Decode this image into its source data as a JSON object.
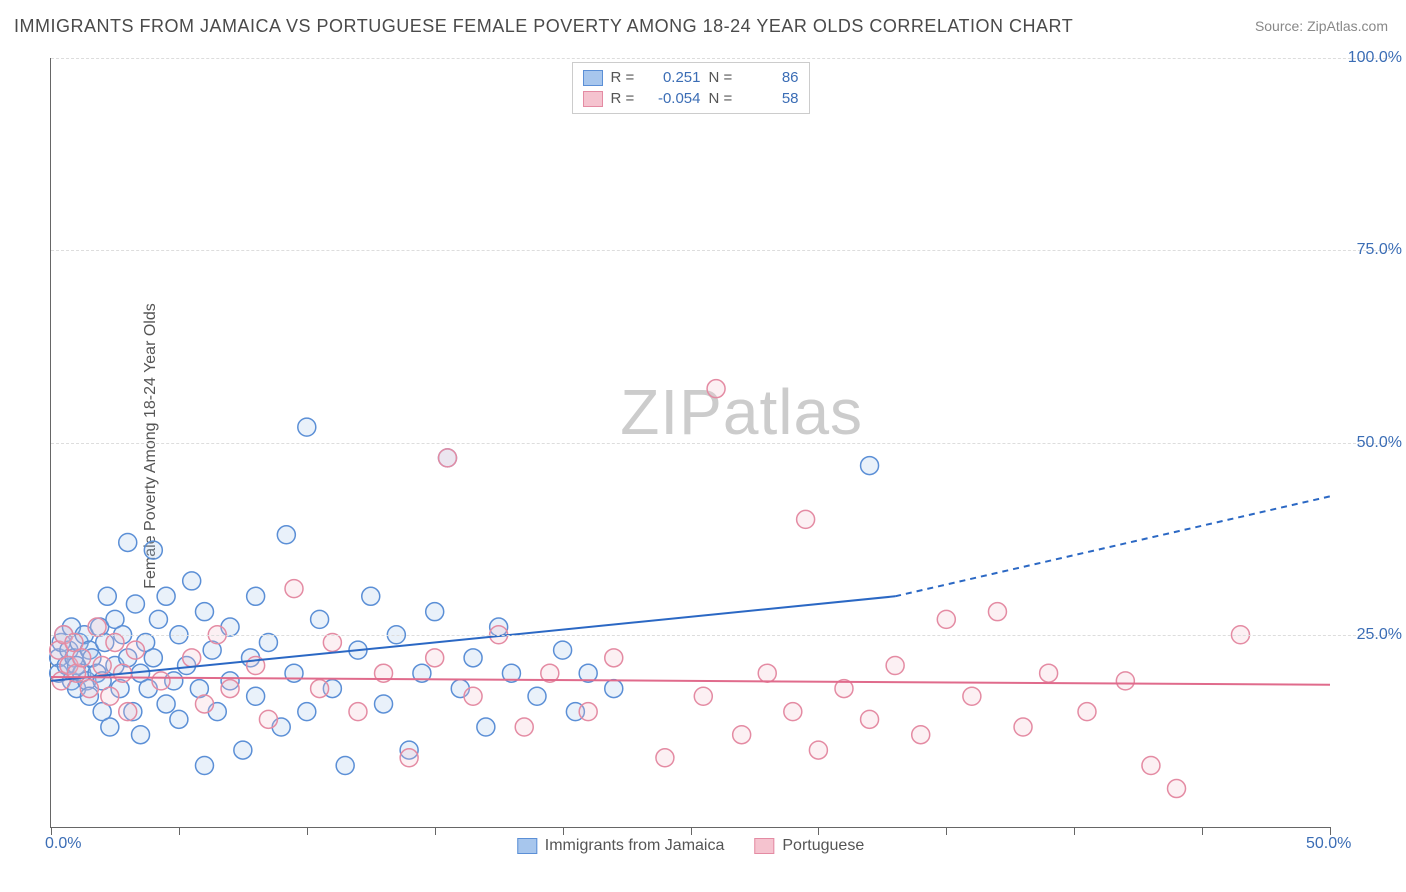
{
  "title": "IMMIGRANTS FROM JAMAICA VS PORTUGUESE FEMALE POVERTY AMONG 18-24 YEAR OLDS CORRELATION CHART",
  "source": "Source: ZipAtlas.com",
  "watermark_a": "ZIP",
  "watermark_b": "atlas",
  "chart": {
    "type": "scatter-with-trend",
    "ylabel": "Female Poverty Among 18-24 Year Olds",
    "xlim": [
      0,
      50
    ],
    "ylim": [
      0,
      100
    ],
    "xticks": [
      0,
      5,
      10,
      15,
      20,
      25,
      30,
      35,
      40,
      45,
      50
    ],
    "xtick_labels": {
      "0": "0.0%",
      "50": "50.0%"
    },
    "yticks": [
      25,
      50,
      75,
      100
    ],
    "ytick_labels": {
      "25": "25.0%",
      "50": "50.0%",
      "75": "75.0%",
      "100": "100.0%"
    },
    "grid_color": "#dddddd",
    "background_color": "#ffffff",
    "axis_color": "#666666",
    "marker_radius": 9,
    "marker_stroke_width": 1.5,
    "marker_fill_opacity": 0.25,
    "trend_line_width": 2
  },
  "series": [
    {
      "name": "Immigrants from Jamaica",
      "color_fill": "#a7c6ed",
      "color_stroke": "#5b8fd6",
      "trend_color": "#2b68c4",
      "R": "0.251",
      "N": "86",
      "trend": {
        "x1": 0,
        "y1": 19,
        "x2": 33,
        "y2": 30,
        "dash_x2": 50,
        "dash_y2": 43
      },
      "points": [
        [
          0.3,
          22
        ],
        [
          0.3,
          20
        ],
        [
          0.4,
          24
        ],
        [
          0.5,
          25
        ],
        [
          0.6,
          21
        ],
        [
          0.7,
          23
        ],
        [
          0.8,
          19
        ],
        [
          0.8,
          26
        ],
        [
          0.9,
          22
        ],
        [
          1.0,
          21
        ],
        [
          1.0,
          18
        ],
        [
          1.1,
          24
        ],
        [
          1.2,
          20
        ],
        [
          1.3,
          25
        ],
        [
          1.4,
          19
        ],
        [
          1.5,
          23
        ],
        [
          1.5,
          17
        ],
        [
          1.6,
          22
        ],
        [
          1.8,
          20
        ],
        [
          1.9,
          26
        ],
        [
          2.0,
          15
        ],
        [
          2.0,
          19
        ],
        [
          2.1,
          24
        ],
        [
          2.2,
          30
        ],
        [
          2.3,
          13
        ],
        [
          2.5,
          21
        ],
        [
          2.5,
          27
        ],
        [
          2.7,
          18
        ],
        [
          2.8,
          25
        ],
        [
          3.0,
          22
        ],
        [
          3.0,
          37
        ],
        [
          3.2,
          15
        ],
        [
          3.3,
          29
        ],
        [
          3.5,
          20
        ],
        [
          3.5,
          12
        ],
        [
          3.7,
          24
        ],
        [
          3.8,
          18
        ],
        [
          4.0,
          36
        ],
        [
          4.0,
          22
        ],
        [
          4.2,
          27
        ],
        [
          4.5,
          16
        ],
        [
          4.5,
          30
        ],
        [
          4.8,
          19
        ],
        [
          5.0,
          25
        ],
        [
          5.0,
          14
        ],
        [
          5.3,
          21
        ],
        [
          5.5,
          32
        ],
        [
          5.8,
          18
        ],
        [
          6.0,
          28
        ],
        [
          6.0,
          8
        ],
        [
          6.3,
          23
        ],
        [
          6.5,
          15
        ],
        [
          7.0,
          26
        ],
        [
          7.0,
          19
        ],
        [
          7.5,
          10
        ],
        [
          7.8,
          22
        ],
        [
          8.0,
          30
        ],
        [
          8.0,
          17
        ],
        [
          8.5,
          24
        ],
        [
          9.0,
          13
        ],
        [
          9.2,
          38
        ],
        [
          9.5,
          20
        ],
        [
          10.0,
          52
        ],
        [
          10.0,
          15
        ],
        [
          10.5,
          27
        ],
        [
          11.0,
          18
        ],
        [
          11.5,
          8
        ],
        [
          12.0,
          23
        ],
        [
          12.5,
          30
        ],
        [
          13.0,
          16
        ],
        [
          13.5,
          25
        ],
        [
          14.0,
          10
        ],
        [
          14.5,
          20
        ],
        [
          15.0,
          28
        ],
        [
          15.5,
          48
        ],
        [
          16.0,
          18
        ],
        [
          16.5,
          22
        ],
        [
          17.0,
          13
        ],
        [
          17.5,
          26
        ],
        [
          18.0,
          20
        ],
        [
          19.0,
          17
        ],
        [
          20.0,
          23
        ],
        [
          20.5,
          15
        ],
        [
          21.0,
          20
        ],
        [
          22.0,
          18
        ],
        [
          32.0,
          47
        ]
      ]
    },
    {
      "name": "Portuguese",
      "color_fill": "#f5c3cf",
      "color_stroke": "#e48ba3",
      "trend_color": "#e06b8c",
      "R": "-0.054",
      "N": "58",
      "trend": {
        "x1": 0,
        "y1": 19.5,
        "x2": 50,
        "y2": 18.5,
        "dash_x2": 50,
        "dash_y2": 18.5
      },
      "points": [
        [
          0.3,
          23
        ],
        [
          0.4,
          19
        ],
        [
          0.5,
          25
        ],
        [
          0.7,
          21
        ],
        [
          0.9,
          24
        ],
        [
          1.0,
          20
        ],
        [
          1.2,
          22
        ],
        [
          1.5,
          18
        ],
        [
          1.8,
          26
        ],
        [
          2.0,
          21
        ],
        [
          2.3,
          17
        ],
        [
          2.5,
          24
        ],
        [
          2.8,
          20
        ],
        [
          3.0,
          15
        ],
        [
          3.3,
          23
        ],
        [
          4.3,
          19
        ],
        [
          5.5,
          22
        ],
        [
          6.0,
          16
        ],
        [
          6.5,
          25
        ],
        [
          7.0,
          18
        ],
        [
          8.0,
          21
        ],
        [
          8.5,
          14
        ],
        [
          9.5,
          31
        ],
        [
          10.5,
          18
        ],
        [
          11.0,
          24
        ],
        [
          12.0,
          15
        ],
        [
          13.0,
          20
        ],
        [
          14.0,
          9
        ],
        [
          15.0,
          22
        ],
        [
          15.5,
          48
        ],
        [
          16.5,
          17
        ],
        [
          17.5,
          25
        ],
        [
          18.5,
          13
        ],
        [
          19.5,
          20
        ],
        [
          21.0,
          15
        ],
        [
          22.0,
          22
        ],
        [
          24.0,
          9
        ],
        [
          25.5,
          17
        ],
        [
          26.0,
          57
        ],
        [
          27.0,
          12
        ],
        [
          28.0,
          20
        ],
        [
          29.0,
          15
        ],
        [
          29.5,
          40
        ],
        [
          30.0,
          10
        ],
        [
          31.0,
          18
        ],
        [
          32.0,
          14
        ],
        [
          33.0,
          21
        ],
        [
          34.0,
          12
        ],
        [
          35.0,
          27
        ],
        [
          36.0,
          17
        ],
        [
          37.0,
          28
        ],
        [
          38.0,
          13
        ],
        [
          39.0,
          20
        ],
        [
          40.5,
          15
        ],
        [
          42.0,
          19
        ],
        [
          43.0,
          8
        ],
        [
          44.0,
          5
        ],
        [
          46.5,
          25
        ]
      ]
    }
  ],
  "legend_top": {
    "R_label": "R =",
    "N_label": "N ="
  },
  "legend_bottom": {
    "label1": "Immigrants from Jamaica",
    "label2": "Portuguese"
  }
}
